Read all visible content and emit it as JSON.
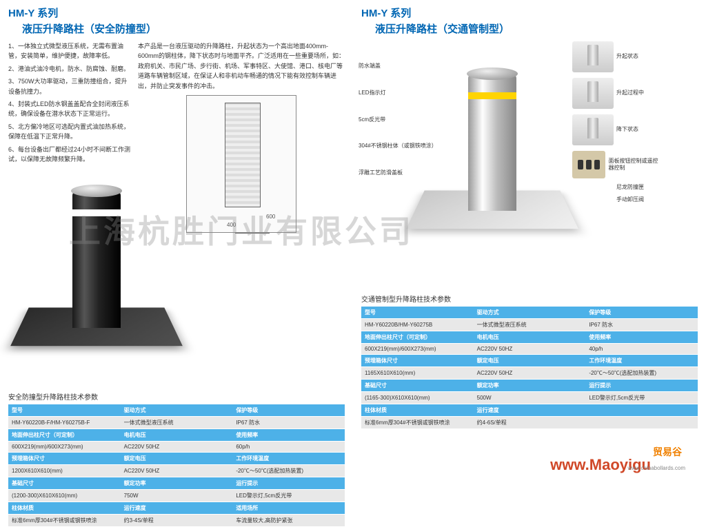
{
  "left": {
    "series": "HM-Y 系列",
    "subtitle": "液压升降路柱（安全防撞型）",
    "features": [
      "1、一体独立式微型液压系统，无需布置油管，安装简单，维护便捷，故障率低。",
      "2、港油式油冷电机，防水、防腐蚀、耐磨。",
      "3、750W大功率驱动，三重防撞组合，提升设备抗撞力。",
      "4、封装式LED防水钢盖盖配合全封闭液压系统，确保设备在潜水状态下正常运行。",
      "5、北方偏冷地区可选配内置式油加热系统，保障在低温下正常升降。",
      "6、每台设备出厂都经过24小时不间断工作测试，以保障无故障频繁升降。"
    ],
    "desc": "本产品是一台液压驱动的升降路柱，升起状态为一个高出地面400mm-600mm的钢柱体，降下状态时与地面平齐。广泛适用在一些重要场所，如：政府机关、市民广场、步行街、机场、军事特区、大使馆、港口、核电厂等道路车辆管制区域，在保证人和非机动车畅通的情况下能有效控制车辆进出，并防止突发事件的冲击。",
    "params_title": "安全防撞型升降路柱技术参数",
    "table": [
      {
        "h1": "型号",
        "v1": "HM-Y60220B-F/HM-Y60275B-F",
        "h2": "驱动方式",
        "v2": "一体式微型液压系统",
        "h3": "保护等级",
        "v3": "IP67 防水"
      },
      {
        "h1": "地面伸出柱尺寸（可定制）",
        "v1": "600X219(mm)/600X273(mm)",
        "h2": "电机电压",
        "v2": "AC220V  50HZ",
        "h3": "使用频率",
        "v3": "60p/h"
      },
      {
        "h1": "预埋箱体尺寸",
        "v1": "1200X610X610(mm)",
        "h2": "额定电压",
        "v2": "AC220V  50HZ",
        "h3": "工作环境温度",
        "v3": "-20℃～50℃(选配加热装置)"
      },
      {
        "h1": "基础尺寸",
        "v1": "(1200-300)X610X610(mm)",
        "h2": "额定功率",
        "v2": "750W",
        "h3": "运行提示",
        "v3": "LED警示灯,5cm反光带"
      },
      {
        "h1": "柱体材质",
        "v1": "标准6mm厚304#不锈钢或钢铁喷涂",
        "h2": "运行速度",
        "v2": "约3-4S/单程",
        "h3": "适用场所",
        "v3": "车流量较大,高防护紧张"
      }
    ]
  },
  "right": {
    "series": "HM-Y 系列",
    "subtitle": "液压升降路柱（交通管制型）",
    "feature_labels": [
      "防水端盖",
      "LED指示灯",
      "5cm反光带",
      "304#不锈钢柱体（或钢铁喷涂）",
      "浮雕工艺防滑盖板"
    ],
    "states": [
      "升起状态",
      "升起过程中",
      "降下状态",
      "面板按钮控制或遥控器控制",
      "尼龙防撞匣",
      "手动卸压阀"
    ],
    "params_title": "交通管制型升降路柱技术参数",
    "table": [
      {
        "h1": "型号",
        "v1": "HM-Y60220B/HM-Y60275B",
        "h2": "驱动方式",
        "v2": "一体式微型液压系统",
        "h3": "保护等级",
        "v3": "IP67 防水"
      },
      {
        "h1": "地面伸出柱尺寸（可定制）",
        "v1": "600X219(mm)/600X273(mm)",
        "h2": "电机电压",
        "v2": "AC220V  50HZ",
        "h3": "使用频率",
        "v3": "40p/h"
      },
      {
        "h1": "预埋箱体尺寸",
        "v1": "1165X610X610(mm)",
        "h2": "额定电压",
        "v2": "AC220V  50HZ",
        "h3": "工作环境温度",
        "v3": "-20℃～50℃(选配加热装置)"
      },
      {
        "h1": "基础尺寸",
        "v1": "(1165-300)X610X610(mm)",
        "h2": "额定功率",
        "v2": "500W",
        "h3": "运行提示",
        "v3": "LED警示灯,5cm反光带"
      },
      {
        "h1": "柱体材质",
        "v1": "标准6mm厚304#不锈钢或钢铁喷涂",
        "h2": "运行速度",
        "v2": "约4-6S/单程",
        "h3": "",
        "v3": ""
      }
    ]
  },
  "watermark": "上海杭胜门业有限公司",
  "url": "www.Maoyigu",
  "brand": "贸易谷",
  "cn": "www.chinabollards.com"
}
